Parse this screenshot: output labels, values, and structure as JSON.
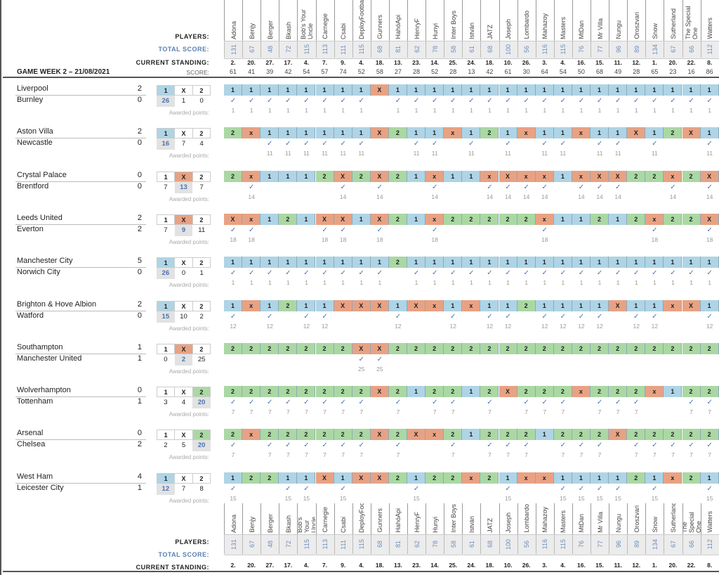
{
  "labels": {
    "players": "PLAYERS:",
    "total_score": "TOTAL SCORE:",
    "current_standing": "CURRENT STANDING:",
    "game_week": "GAME WEEK 2 – 21/08/2021",
    "score": "SCORE:",
    "awarded_points": "Awarded points:",
    "check": "✓",
    "outcome_1": "1",
    "outcome_x": "X",
    "outcome_2": "2"
  },
  "colors": {
    "pick_1": "#aed4e6",
    "pick_x": "#e8a283",
    "pick_2": "#aad8a3",
    "total_score": "#6a8dbd"
  },
  "players": [
    {
      "name": "Adona",
      "total": "131",
      "standing": "2.",
      "score": "61"
    },
    {
      "name": "Benjy",
      "total": "67",
      "standing": "20.",
      "score": "41"
    },
    {
      "name": "Berger",
      "total": "48",
      "standing": "27.",
      "score": "39"
    },
    {
      "name": "Bkash",
      "total": "72",
      "standing": "17.",
      "score": "42"
    },
    {
      "name": "Bob's Your Uncle",
      "total": "115",
      "standing": "4.",
      "score": "54"
    },
    {
      "name": "Carnegie",
      "total": "113",
      "standing": "7.",
      "score": "57"
    },
    {
      "name": "Csabi",
      "total": "111",
      "standing": "9.",
      "score": "74"
    },
    {
      "name": "DeployFootball",
      "total": "115",
      "standing": "4.",
      "score": "52"
    },
    {
      "name": "Gunners",
      "total": "68",
      "standing": "18.",
      "score": "58"
    },
    {
      "name": "HahóApi",
      "total": "81",
      "standing": "13.",
      "score": "27"
    },
    {
      "name": "HenryF",
      "total": "62",
      "standing": "23.",
      "score": "28"
    },
    {
      "name": "Hunyi",
      "total": "78",
      "standing": "14.",
      "score": "52"
    },
    {
      "name": "Inter Boys",
      "total": "58",
      "standing": "25.",
      "score": "28"
    },
    {
      "name": "István",
      "total": "61",
      "standing": "24.",
      "score": "13"
    },
    {
      "name": "JATZ",
      "total": "68",
      "standing": "18.",
      "score": "42"
    },
    {
      "name": "Joseph",
      "total": "100",
      "standing": "10.",
      "score": "61"
    },
    {
      "name": "Lombardo",
      "total": "56",
      "standing": "26.",
      "score": "30"
    },
    {
      "name": "Mahazoy",
      "total": "116",
      "standing": "3.",
      "score": "64"
    },
    {
      "name": "Masters",
      "total": "115",
      "standing": "4.",
      "score": "54"
    },
    {
      "name": "MtDan",
      "total": "76",
      "standing": "16.",
      "score": "50"
    },
    {
      "name": "Mr Villa",
      "total": "77",
      "standing": "15.",
      "score": "68"
    },
    {
      "name": "Nungu",
      "total": "96",
      "standing": "11.",
      "score": "49"
    },
    {
      "name": "Oroszvari",
      "total": "89",
      "standing": "12.",
      "score": "28"
    },
    {
      "name": "Snow",
      "total": "134",
      "standing": "1.",
      "score": "65"
    },
    {
      "name": "Sutherland",
      "total": "67",
      "standing": "20.",
      "score": "23"
    },
    {
      "name": "The Special One",
      "total": "66",
      "standing": "22.",
      "score": "16"
    },
    {
      "name": "Watters",
      "total": "112",
      "standing": "8.",
      "score": "86"
    }
  ],
  "matches": [
    {
      "home": "Liverpool",
      "away": "Burnley",
      "home_goals": "2",
      "away_goals": "0",
      "result": "1",
      "counts": [
        "26",
        "1",
        "0"
      ],
      "points": "1",
      "picks": [
        "1",
        "1",
        "1",
        "1",
        "1",
        "1",
        "1",
        "1",
        "X",
        "1",
        "1",
        "1",
        "1",
        "1",
        "1",
        "1",
        "1",
        "1",
        "1",
        "1",
        "1",
        "1",
        "1",
        "1",
        "1",
        "1",
        "1"
      ]
    },
    {
      "home": "Aston Villa",
      "away": "Newcastle",
      "home_goals": "2",
      "away_goals": "0",
      "result": "1",
      "counts": [
        "16",
        "7",
        "4"
      ],
      "points": "11",
      "picks": [
        "2",
        "x",
        "1",
        "1",
        "1",
        "1",
        "1",
        "1",
        "X",
        "2",
        "1",
        "1",
        "x",
        "1",
        "2",
        "1",
        "x",
        "1",
        "1",
        "x",
        "1",
        "1",
        "X",
        "1",
        "2",
        "X",
        "1"
      ]
    },
    {
      "home": "Crystal Palace",
      "away": "Brentford",
      "home_goals": "0",
      "away_goals": "0",
      "result": "X",
      "counts": [
        "7",
        "13",
        "7"
      ],
      "points": "14",
      "picks": [
        "2",
        "x",
        "1",
        "1",
        "1",
        "2",
        "X",
        "2",
        "X",
        "2",
        "1",
        "x",
        "1",
        "1",
        "x",
        "X",
        "x",
        "x",
        "1",
        "x",
        "X",
        "X",
        "2",
        "2",
        "x",
        "2",
        "X"
      ]
    },
    {
      "home": "Leeds United",
      "away": "Everton",
      "home_goals": "2",
      "away_goals": "2",
      "result": "X",
      "counts": [
        "7",
        "9",
        "11"
      ],
      "points": "18",
      "picks": [
        "X",
        "x",
        "1",
        "2",
        "1",
        "X",
        "X",
        "1",
        "X",
        "2",
        "1",
        "x",
        "2",
        "2",
        "2",
        "2",
        "2",
        "x",
        "1",
        "1",
        "2",
        "1",
        "2",
        "x",
        "2",
        "2",
        "X"
      ]
    },
    {
      "home": "Manchester City",
      "away": "Norwich City",
      "home_goals": "5",
      "away_goals": "0",
      "result": "1",
      "counts": [
        "26",
        "0",
        "1"
      ],
      "points": "1",
      "picks": [
        "1",
        "1",
        "1",
        "1",
        "1",
        "1",
        "1",
        "1",
        "1",
        "2",
        "1",
        "1",
        "1",
        "1",
        "1",
        "1",
        "1",
        "1",
        "1",
        "1",
        "1",
        "1",
        "1",
        "1",
        "1",
        "1",
        "1"
      ]
    },
    {
      "home": "Brighton & Hove Albion",
      "away": "Watford",
      "home_goals": "2",
      "away_goals": "0",
      "result": "1",
      "counts": [
        "15",
        "10",
        "2"
      ],
      "points": "12",
      "picks": [
        "1",
        "x",
        "1",
        "2",
        "1",
        "1",
        "X",
        "X",
        "X",
        "1",
        "X",
        "x",
        "1",
        "x",
        "1",
        "1",
        "2",
        "1",
        "1",
        "1",
        "1",
        "X",
        "1",
        "1",
        "x",
        "X",
        "1"
      ]
    },
    {
      "home": "Southampton",
      "away": "Manchester United",
      "home_goals": "1",
      "away_goals": "1",
      "result": "X",
      "counts": [
        "0",
        "2",
        "25"
      ],
      "points": "25",
      "picks": [
        "2",
        "2",
        "2",
        "2",
        "2",
        "2",
        "2",
        "X",
        "X",
        "2",
        "2",
        "2",
        "2",
        "2",
        "2",
        "2",
        "2",
        "2",
        "2",
        "2",
        "2",
        "2",
        "2",
        "2",
        "2",
        "2",
        "2"
      ]
    },
    {
      "home": "Wolverhampton",
      "away": "Tottenham",
      "home_goals": "0",
      "away_goals": "1",
      "result": "2",
      "counts": [
        "3",
        "4",
        "20"
      ],
      "points": "7",
      "picks": [
        "2",
        "2",
        "2",
        "2",
        "2",
        "2",
        "2",
        "2",
        "X",
        "2",
        "1",
        "2",
        "2",
        "1",
        "2",
        "X",
        "2",
        "2",
        "2",
        "x",
        "2",
        "2",
        "2",
        "x",
        "1",
        "2",
        "2"
      ]
    },
    {
      "home": "Arsenal",
      "away": "Chelsea",
      "home_goals": "0",
      "away_goals": "2",
      "result": "2",
      "counts": [
        "2",
        "5",
        "20"
      ],
      "points": "7",
      "picks": [
        "2",
        "x",
        "2",
        "2",
        "2",
        "2",
        "2",
        "2",
        "X",
        "2",
        "X",
        "x",
        "2",
        "1",
        "2",
        "2",
        "2",
        "1",
        "2",
        "2",
        "2",
        "X",
        "2",
        "2",
        "2",
        "2",
        "2"
      ]
    },
    {
      "home": "West Ham",
      "away": "Leicester City",
      "home_goals": "4",
      "away_goals": "1",
      "result": "1",
      "counts": [
        "12",
        "7",
        "8"
      ],
      "points": "15",
      "picks": [
        "1",
        "2",
        "2",
        "1",
        "1",
        "X",
        "1",
        "X",
        "X",
        "2",
        "1",
        "2",
        "2",
        "x",
        "2",
        "1",
        "x",
        "x",
        "1",
        "1",
        "1",
        "1",
        "2",
        "1",
        "x",
        "2",
        "1"
      ]
    }
  ]
}
